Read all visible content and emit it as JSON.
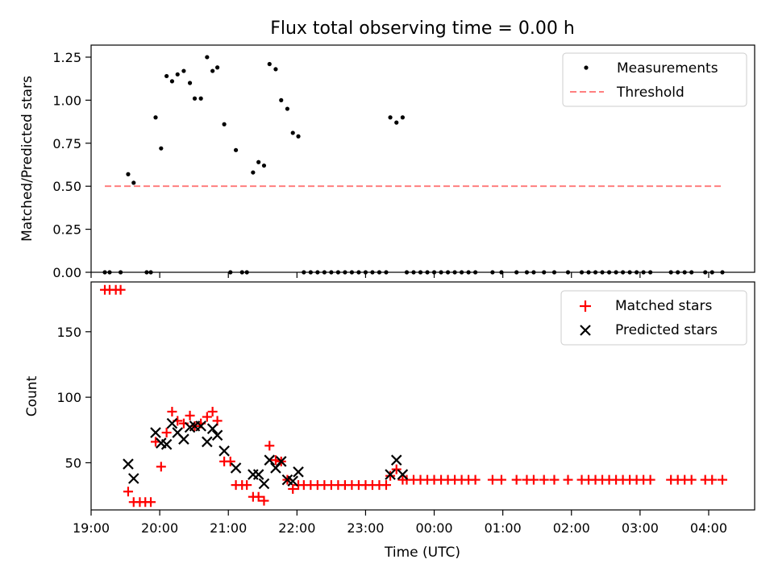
{
  "title": "Flux total observing time = 0.00 h",
  "chart_data": [
    {
      "type": "scatter",
      "panel": "top",
      "ylabel": "Matched/Predicted stars",
      "ylim": [
        0,
        1.32
      ],
      "yticks": [
        0,
        0.25,
        0.5,
        0.75,
        1.0,
        1.25
      ],
      "yticklabels": [
        "0.00",
        "0.25",
        "0.50",
        "0.75",
        "1.00",
        "1.25"
      ],
      "xlim": [
        19.0,
        4.67
      ],
      "legend_position": "top-right",
      "legend": [
        "Measurements",
        "Threshold"
      ],
      "threshold": {
        "name": "Threshold",
        "value": 0.5,
        "x_start": 19.2,
        "x_end": 4.2,
        "color": "#ff7f7f"
      },
      "measurements": {
        "name": "Measurements",
        "color": "#000000",
        "x": [
          19.2,
          19.27,
          19.43,
          19.54,
          19.62,
          19.81,
          19.87,
          19.94,
          20.02,
          20.1,
          20.18,
          20.26,
          20.35,
          20.44,
          20.51,
          20.6,
          20.69,
          20.77,
          20.84,
          20.94,
          21.03,
          21.11,
          21.2,
          21.27,
          21.36,
          21.44,
          21.52,
          21.6,
          21.69,
          21.77,
          21.86,
          21.94,
          22.02,
          23.36,
          23.45,
          23.54,
          22.1,
          22.2,
          22.3,
          22.4,
          22.5,
          22.6,
          22.7,
          22.8,
          22.9,
          23.0,
          23.1,
          23.2,
          23.3,
          23.6,
          23.7,
          23.8,
          23.9,
          24.0,
          24.1,
          24.2,
          24.3,
          24.4,
          24.5,
          24.6,
          24.85,
          24.98,
          25.2,
          25.35,
          25.45,
          25.6,
          25.75,
          25.95,
          26.15,
          26.25,
          26.35,
          26.45,
          26.55,
          26.65,
          26.75,
          26.85,
          26.95,
          27.05,
          27.15,
          27.45,
          27.55,
          27.65,
          27.75,
          27.95,
          28.05,
          28.2
        ],
        "y": [
          0,
          0,
          0,
          0.57,
          0.52,
          0,
          0,
          0.9,
          0.72,
          1.14,
          1.11,
          1.15,
          1.17,
          1.1,
          1.01,
          1.01,
          1.25,
          1.17,
          1.19,
          0.86,
          0,
          0.71,
          0,
          0,
          0.58,
          0.64,
          0.62,
          1.21,
          1.18,
          1.0,
          0.95,
          0.81,
          0.79,
          0.9,
          0.87,
          0.9,
          0,
          0,
          0,
          0,
          0,
          0,
          0,
          0,
          0,
          0,
          0,
          0,
          0,
          0,
          0,
          0,
          0,
          0,
          0,
          0,
          0,
          0,
          0,
          0,
          0,
          0,
          0,
          0,
          0,
          0,
          0,
          0,
          0,
          0,
          0,
          0,
          0,
          0,
          0,
          0,
          0,
          0,
          0,
          0,
          0,
          0,
          0,
          0,
          0,
          0
        ]
      }
    },
    {
      "type": "scatter",
      "panel": "bottom",
      "xlabel": "Time (UTC)",
      "ylabel": "Count",
      "ylim": [
        14,
        188
      ],
      "yticks": [
        50,
        100,
        150
      ],
      "yticklabels": [
        "50",
        "100",
        "150"
      ],
      "xticks": [
        19,
        20,
        21,
        22,
        23,
        24,
        25,
        26,
        27,
        28
      ],
      "xticklabels": [
        "19:00",
        "20:00",
        "21:00",
        "22:00",
        "23:00",
        "00:00",
        "01:00",
        "02:00",
        "03:00",
        "04:00"
      ],
      "legend_position": "top-right",
      "legend": [
        "Matched stars",
        "Predicted stars"
      ],
      "series": [
        {
          "name": "Matched stars",
          "marker": "plus",
          "color": "#ff0000",
          "x": [
            19.2,
            19.27,
            19.36,
            19.43,
            19.54,
            19.62,
            19.71,
            19.79,
            19.87,
            19.94,
            20.02,
            20.1,
            20.18,
            20.26,
            20.35,
            20.44,
            20.51,
            20.6,
            20.69,
            20.77,
            20.84,
            20.94,
            21.03,
            21.11,
            21.2,
            21.27,
            21.36,
            21.44,
            21.52,
            21.6,
            21.69,
            21.77,
            21.86,
            21.94,
            22.02,
            22.1,
            22.2,
            22.3,
            22.4,
            22.5,
            22.6,
            22.7,
            22.8,
            22.9,
            23.0,
            23.1,
            23.2,
            23.3,
            23.36,
            23.45,
            23.54,
            23.6,
            23.7,
            23.8,
            23.9,
            24.0,
            24.1,
            24.2,
            24.3,
            24.4,
            24.5,
            24.6,
            24.85,
            24.98,
            25.2,
            25.35,
            25.45,
            25.6,
            25.75,
            25.95,
            26.15,
            26.25,
            26.35,
            26.45,
            26.55,
            26.65,
            26.75,
            26.85,
            26.95,
            27.05,
            27.15,
            27.45,
            27.55,
            27.65,
            27.75,
            27.95,
            28.05,
            28.2
          ],
          "y": [
            182,
            182,
            182,
            182,
            28,
            20,
            20,
            20,
            20,
            66,
            47,
            73,
            89,
            82,
            80,
            86,
            78,
            80,
            85,
            89,
            82,
            51,
            51,
            33,
            33,
            33,
            24,
            24,
            21,
            63,
            52,
            51,
            37,
            30,
            33,
            33,
            33,
            33,
            33,
            33,
            33,
            33,
            33,
            33,
            33,
            33,
            33,
            33,
            40,
            45,
            37,
            37,
            37,
            37,
            37,
            37,
            37,
            37,
            37,
            37,
            37,
            37,
            37,
            37,
            37,
            37,
            37,
            37,
            37,
            37,
            37,
            37,
            37,
            37,
            37,
            37,
            37,
            37,
            37,
            37,
            37,
            37,
            37,
            37,
            37,
            37,
            37,
            37
          ]
        },
        {
          "name": "Predicted stars",
          "marker": "x",
          "color": "#000000",
          "x": [
            19.54,
            19.62,
            19.94,
            20.02,
            20.1,
            20.18,
            20.26,
            20.35,
            20.44,
            20.51,
            20.6,
            20.69,
            20.77,
            20.84,
            20.94,
            21.11,
            21.36,
            21.44,
            21.52,
            21.6,
            21.69,
            21.77,
            21.86,
            21.94,
            22.02,
            23.36,
            23.45,
            23.54
          ],
          "y": [
            49,
            38,
            73,
            65,
            64,
            80,
            73,
            68,
            77,
            78,
            78,
            66,
            76,
            71,
            59,
            46,
            41,
            41,
            34,
            52,
            46,
            51,
            37,
            36,
            43,
            41,
            52,
            41
          ]
        }
      ]
    }
  ]
}
